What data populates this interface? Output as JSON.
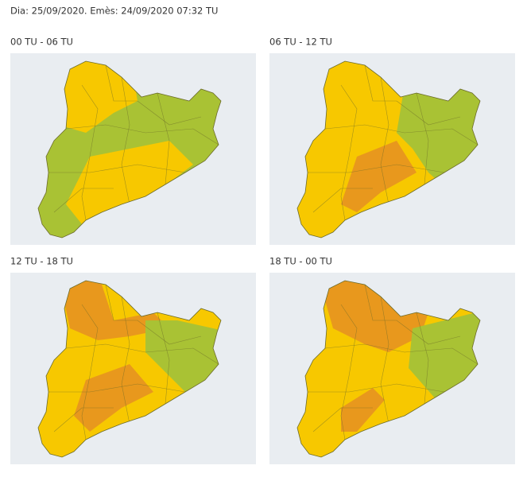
{
  "header": {
    "text": "Dia: 25/09/2020. Emès: 24/09/2020 07:32 TU"
  },
  "panels": [
    {
      "title": "00 TU - 06 TU"
    },
    {
      "title": "06 TU - 12 TU"
    },
    {
      "title": "12 TU - 18 TU"
    },
    {
      "title": "18 TU - 00 TU"
    }
  ]
}
